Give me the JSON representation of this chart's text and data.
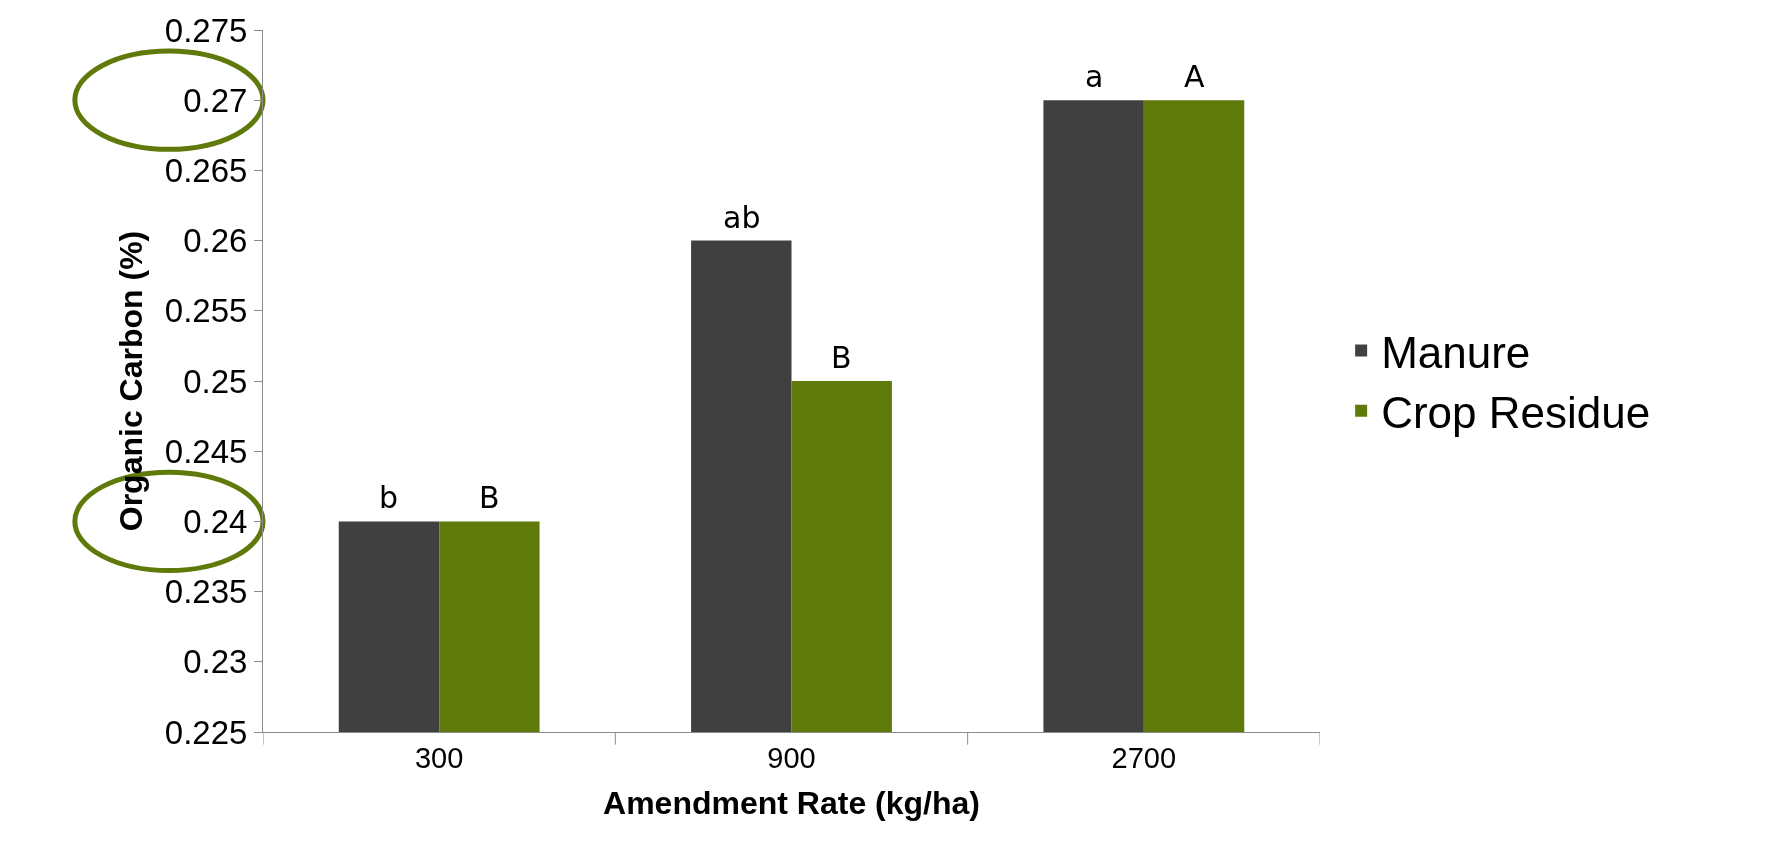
{
  "chart_data": {
    "type": "bar",
    "xlabel": "Amendment Rate (kg/ha)",
    "ylabel": "Organic Carbon (%)",
    "categories": [
      "300",
      "900",
      "2700"
    ],
    "series": [
      {
        "name": "Manure",
        "color": "#404040",
        "values": [
          0.24,
          0.26,
          0.27
        ]
      },
      {
        "name": "Crop Residue",
        "color": "#5f7a0a",
        "values": [
          0.24,
          0.25,
          0.27
        ]
      }
    ],
    "ylim": [
      0.225,
      0.275
    ],
    "yticks": [
      0.225,
      0.23,
      0.235,
      0.24,
      0.245,
      0.25,
      0.255,
      0.26,
      0.265,
      0.27,
      0.275
    ],
    "annotations": [
      {
        "text": "b",
        "x": "300",
        "y": 0.24
      },
      {
        "text": "B",
        "x": "300",
        "y": 0.24
      },
      {
        "text": "ab",
        "x": "900",
        "y": 0.26
      },
      {
        "text": "B",
        "x": "900",
        "y": 0.25
      },
      {
        "text": "a",
        "x": "2700",
        "y": 0.27
      },
      {
        "text": "A",
        "x": "2700",
        "y": 0.27
      }
    ],
    "legend": "right"
  }
}
